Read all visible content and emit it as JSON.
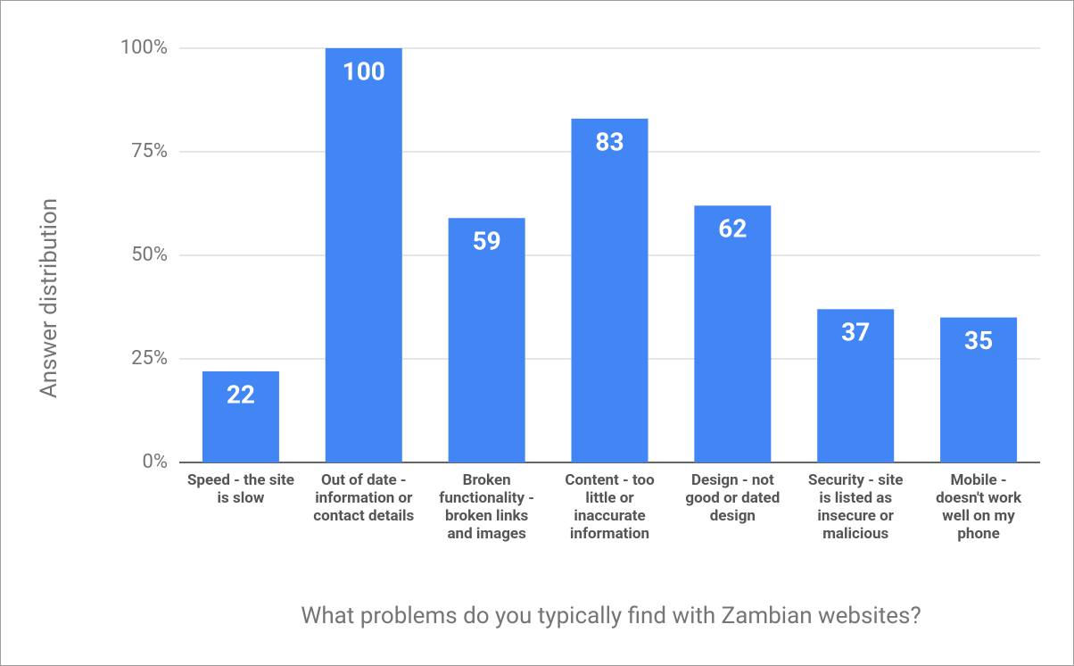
{
  "chart_data": {
    "type": "bar",
    "x_label": "What problems do you typically find with Zambian websites?",
    "y_label": "Answer distribution",
    "categories": [
      "Speed - the site is slow",
      "Out of date - information or contact details",
      "Broken functionality - broken links and images",
      "Content - too little or inaccurate information",
      "Design - not good or dated design",
      "Security - site is listed as insecure or malicious",
      "Mobile - doesn't work well on my phone"
    ],
    "values": [
      22,
      100,
      59,
      83,
      62,
      37,
      35
    ],
    "color": "#4285f4",
    "ylim": [
      0,
      100
    ],
    "yticks": [
      {
        "value": 0,
        "label": "0%"
      },
      {
        "value": 25,
        "label": "25%"
      },
      {
        "value": 50,
        "label": "50%"
      },
      {
        "value": 75,
        "label": "75%"
      },
      {
        "value": 100,
        "label": "100%"
      }
    ],
    "grid": true
  }
}
